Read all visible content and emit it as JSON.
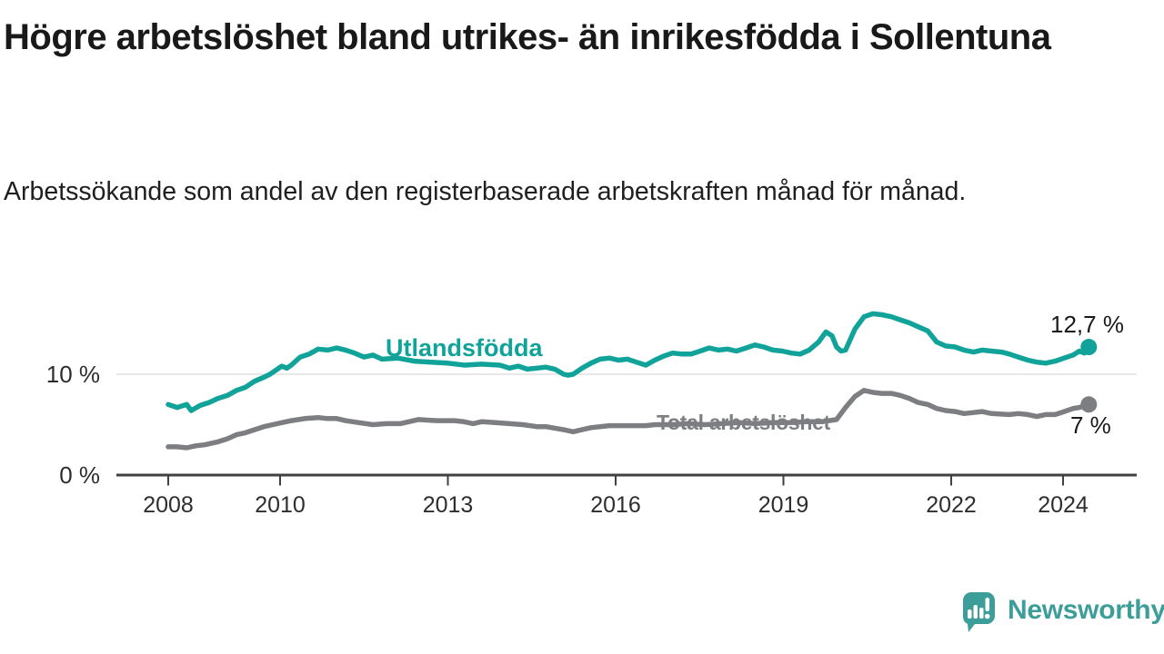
{
  "header": {
    "title": "Högre arbetslöshet bland utrikes- än inrikesfödda i Sollentuna",
    "subtitle": "Arbetssökande som andel av den registerbaserade arbetskraften månad för månad."
  },
  "footer": {
    "brand": "Newsworthy",
    "brand_color": "#3d9e99",
    "icon": "newsworthy-speech-bubble-barchart-icon"
  },
  "chart_data": {
    "type": "line",
    "title": "Högre arbetslöshet bland utrikes- än inrikesfödda i Sollentuna",
    "subtitle": "Arbetssökande som andel av den registerbaserade arbetskraften månad för månad.",
    "unit": "%",
    "grid": "horizontal-10-only",
    "legend_position": "inline-labels-on-lines",
    "x_axis": {
      "range": [
        2007.6,
        2025.0
      ],
      "ticks": [
        {
          "year": 2008,
          "label": "2008"
        },
        {
          "year": 2010,
          "label": "2010"
        },
        {
          "year": 2013,
          "label": "2013"
        },
        {
          "year": 2016,
          "label": "2016"
        },
        {
          "year": 2019,
          "label": "2019"
        },
        {
          "year": 2022,
          "label": "2022"
        },
        {
          "year": 2024,
          "label": "2024"
        }
      ]
    },
    "y_axis": {
      "range": [
        0,
        17.5
      ],
      "ticks": [
        {
          "value": 10,
          "label": "10 %"
        },
        {
          "value": 0,
          "label": "0 %"
        }
      ]
    },
    "series": [
      {
        "name": "Utlandsfödda",
        "color": "#11a39a",
        "end_label": "12,7 %",
        "end_value": 12.7,
        "points": [
          [
            2008.0,
            7.0
          ],
          [
            2008.16,
            6.7
          ],
          [
            2008.33,
            7.0
          ],
          [
            2008.41,
            6.4
          ],
          [
            2008.57,
            6.9
          ],
          [
            2008.73,
            7.2
          ],
          [
            2008.89,
            7.6
          ],
          [
            2009.06,
            7.9
          ],
          [
            2009.22,
            8.4
          ],
          [
            2009.38,
            8.7
          ],
          [
            2009.54,
            9.3
          ],
          [
            2009.71,
            9.7
          ],
          [
            2009.82,
            10.0
          ],
          [
            2010.03,
            10.8
          ],
          [
            2010.12,
            10.6
          ],
          [
            2010.2,
            10.9
          ],
          [
            2010.36,
            11.7
          ],
          [
            2010.52,
            12.0
          ],
          [
            2010.68,
            12.5
          ],
          [
            2010.85,
            12.4
          ],
          [
            2011.01,
            12.6
          ],
          [
            2011.17,
            12.4
          ],
          [
            2011.33,
            12.1
          ],
          [
            2011.5,
            11.7
          ],
          [
            2011.66,
            11.9
          ],
          [
            2011.82,
            11.5
          ],
          [
            2012.1,
            11.6
          ],
          [
            2012.4,
            11.3
          ],
          [
            2012.7,
            11.2
          ],
          [
            2013.0,
            11.1
          ],
          [
            2013.3,
            10.9
          ],
          [
            2013.6,
            11.0
          ],
          [
            2013.93,
            10.9
          ],
          [
            2014.1,
            10.6
          ],
          [
            2014.26,
            10.8
          ],
          [
            2014.42,
            10.5
          ],
          [
            2014.59,
            10.6
          ],
          [
            2014.75,
            10.7
          ],
          [
            2014.91,
            10.5
          ],
          [
            2015.07,
            10.0
          ],
          [
            2015.15,
            9.9
          ],
          [
            2015.24,
            10.0
          ],
          [
            2015.4,
            10.6
          ],
          [
            2015.56,
            11.1
          ],
          [
            2015.72,
            11.5
          ],
          [
            2015.89,
            11.6
          ],
          [
            2016.05,
            11.4
          ],
          [
            2016.21,
            11.5
          ],
          [
            2016.37,
            11.2
          ],
          [
            2016.54,
            10.9
          ],
          [
            2016.7,
            11.4
          ],
          [
            2016.86,
            11.8
          ],
          [
            2017.02,
            12.1
          ],
          [
            2017.19,
            12.0
          ],
          [
            2017.35,
            12.0
          ],
          [
            2017.51,
            12.3
          ],
          [
            2017.67,
            12.6
          ],
          [
            2017.84,
            12.4
          ],
          [
            2018.0,
            12.5
          ],
          [
            2018.16,
            12.3
          ],
          [
            2018.33,
            12.6
          ],
          [
            2018.49,
            12.9
          ],
          [
            2018.65,
            12.7
          ],
          [
            2018.81,
            12.4
          ],
          [
            2018.98,
            12.3
          ],
          [
            2019.14,
            12.1
          ],
          [
            2019.3,
            12.0
          ],
          [
            2019.46,
            12.4
          ],
          [
            2019.63,
            13.2
          ],
          [
            2019.76,
            14.2
          ],
          [
            2019.87,
            13.8
          ],
          [
            2019.95,
            12.7
          ],
          [
            2020.03,
            12.3
          ],
          [
            2020.11,
            12.4
          ],
          [
            2020.2,
            13.5
          ],
          [
            2020.28,
            14.5
          ],
          [
            2020.44,
            15.7
          ],
          [
            2020.6,
            16.0
          ],
          [
            2020.76,
            15.9
          ],
          [
            2020.93,
            15.7
          ],
          [
            2021.09,
            15.4
          ],
          [
            2021.25,
            15.1
          ],
          [
            2021.41,
            14.7
          ],
          [
            2021.58,
            14.3
          ],
          [
            2021.74,
            13.2
          ],
          [
            2021.9,
            12.8
          ],
          [
            2022.07,
            12.7
          ],
          [
            2022.23,
            12.4
          ],
          [
            2022.4,
            12.2
          ],
          [
            2022.55,
            12.4
          ],
          [
            2022.72,
            12.3
          ],
          [
            2022.9,
            12.2
          ],
          [
            2023.04,
            12.0
          ],
          [
            2023.2,
            11.7
          ],
          [
            2023.37,
            11.4
          ],
          [
            2023.53,
            11.2
          ],
          [
            2023.69,
            11.1
          ],
          [
            2023.86,
            11.3
          ],
          [
            2024.02,
            11.6
          ],
          [
            2024.18,
            11.9
          ],
          [
            2024.29,
            12.3
          ],
          [
            2024.38,
            12.1
          ],
          [
            2024.46,
            12.7
          ]
        ]
      },
      {
        "name": "Total arbetslöshet",
        "color": "#7d7e82",
        "end_label": "7 %",
        "end_value": 7.0,
        "points": [
          [
            2008.0,
            2.8
          ],
          [
            2008.16,
            2.8
          ],
          [
            2008.33,
            2.7
          ],
          [
            2008.49,
            2.9
          ],
          [
            2008.65,
            3.0
          ],
          [
            2008.89,
            3.3
          ],
          [
            2009.06,
            3.6
          ],
          [
            2009.22,
            4.0
          ],
          [
            2009.38,
            4.2
          ],
          [
            2009.54,
            4.5
          ],
          [
            2009.71,
            4.8
          ],
          [
            2009.87,
            5.0
          ],
          [
            2010.03,
            5.2
          ],
          [
            2010.2,
            5.4
          ],
          [
            2010.44,
            5.6
          ],
          [
            2010.68,
            5.7
          ],
          [
            2010.85,
            5.6
          ],
          [
            2011.01,
            5.6
          ],
          [
            2011.17,
            5.4
          ],
          [
            2011.41,
            5.2
          ],
          [
            2011.66,
            5.0
          ],
          [
            2011.9,
            5.1
          ],
          [
            2012.15,
            5.1
          ],
          [
            2012.47,
            5.5
          ],
          [
            2012.8,
            5.4
          ],
          [
            2013.12,
            5.4
          ],
          [
            2013.28,
            5.3
          ],
          [
            2013.45,
            5.1
          ],
          [
            2013.61,
            5.3
          ],
          [
            2013.85,
            5.2
          ],
          [
            2014.1,
            5.1
          ],
          [
            2014.34,
            5.0
          ],
          [
            2014.59,
            4.8
          ],
          [
            2014.75,
            4.8
          ],
          [
            2015.07,
            4.5
          ],
          [
            2015.24,
            4.3
          ],
          [
            2015.56,
            4.7
          ],
          [
            2015.89,
            4.9
          ],
          [
            2016.21,
            4.9
          ],
          [
            2016.54,
            4.9
          ],
          [
            2016.7,
            5.0
          ],
          [
            2017.0,
            5.0
          ],
          [
            2017.3,
            5.1
          ],
          [
            2017.6,
            5.0
          ],
          [
            2017.9,
            5.1
          ],
          [
            2018.2,
            5.2
          ],
          [
            2018.5,
            5.1
          ],
          [
            2018.8,
            5.2
          ],
          [
            2019.1,
            5.2
          ],
          [
            2019.4,
            5.3
          ],
          [
            2019.7,
            5.3
          ],
          [
            2019.95,
            5.5
          ],
          [
            2020.11,
            6.7
          ],
          [
            2020.28,
            7.8
          ],
          [
            2020.44,
            8.4
          ],
          [
            2020.6,
            8.2
          ],
          [
            2020.76,
            8.1
          ],
          [
            2020.93,
            8.1
          ],
          [
            2021.09,
            7.9
          ],
          [
            2021.25,
            7.6
          ],
          [
            2021.41,
            7.2
          ],
          [
            2021.58,
            7.0
          ],
          [
            2021.74,
            6.6
          ],
          [
            2021.9,
            6.4
          ],
          [
            2022.07,
            6.3
          ],
          [
            2022.23,
            6.1
          ],
          [
            2022.4,
            6.2
          ],
          [
            2022.55,
            6.3
          ],
          [
            2022.72,
            6.1
          ],
          [
            2023.04,
            6.0
          ],
          [
            2023.2,
            6.1
          ],
          [
            2023.37,
            6.0
          ],
          [
            2023.53,
            5.8
          ],
          [
            2023.69,
            6.0
          ],
          [
            2023.86,
            6.0
          ],
          [
            2024.02,
            6.3
          ],
          [
            2024.18,
            6.6
          ],
          [
            2024.29,
            6.7
          ],
          [
            2024.46,
            7.0
          ]
        ]
      }
    ]
  }
}
